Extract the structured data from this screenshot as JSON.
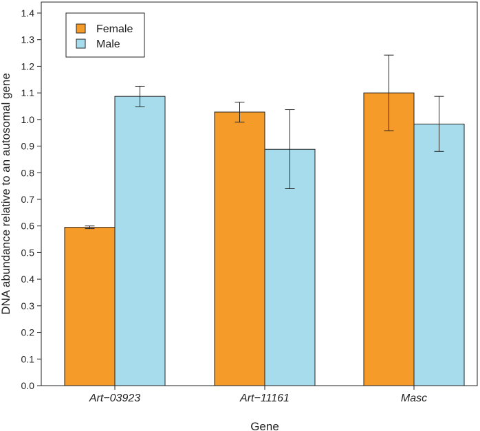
{
  "chart_data": {
    "type": "bar",
    "title": "",
    "xlabel": "Gene",
    "ylabel": "DNA abundance relative to an autosomal gene",
    "ylim": [
      0,
      1.4
    ],
    "yticks": [
      "0.0",
      "0.1",
      "0.2",
      "0.3",
      "0.4",
      "0.5",
      "0.6",
      "0.7",
      "0.8",
      "0.9",
      "1.0",
      "1.1",
      "1.2",
      "1.3",
      "1.4"
    ],
    "categories": [
      "Art−03923",
      "Art−11161",
      "Masc"
    ],
    "legend_position": "top-left",
    "series": [
      {
        "name": "Female",
        "color": "#F59B29",
        "values": [
          0.595,
          1.028,
          1.1
        ],
        "err_low": [
          0.59,
          0.99,
          0.958
        ],
        "err_high": [
          0.6,
          1.065,
          1.242
        ]
      },
      {
        "name": "Male",
        "color": "#A6DCEC",
        "values": [
          1.087,
          0.888,
          0.983
        ],
        "err_low": [
          1.048,
          0.74,
          0.88
        ],
        "err_high": [
          1.125,
          1.037,
          1.087
        ]
      }
    ]
  }
}
